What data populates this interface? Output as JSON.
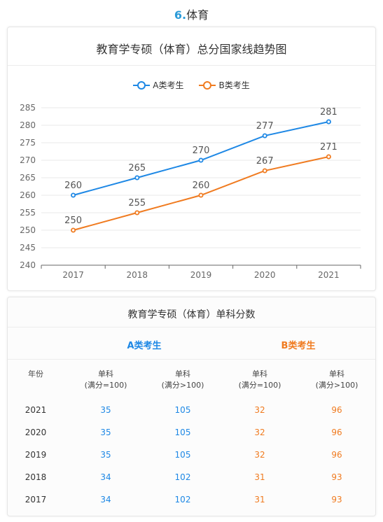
{
  "page": {
    "number": "6",
    "separator": ".",
    "title": "体育"
  },
  "chart_data": {
    "type": "line",
    "title": "教育学专硕（体育）总分国家线趋势图",
    "categories": [
      "2017",
      "2018",
      "2019",
      "2020",
      "2021"
    ],
    "series": [
      {
        "name": "A类考生",
        "color": "#1e88e5",
        "values": [
          260,
          265,
          270,
          277,
          281
        ]
      },
      {
        "name": "B类考生",
        "color": "#f07b20",
        "values": [
          250,
          255,
          260,
          267,
          271
        ]
      }
    ],
    "ylim": [
      240,
      285
    ],
    "yticks": [
      "240",
      "245",
      "250",
      "255",
      "260",
      "265",
      "270",
      "275",
      "280",
      "285"
    ],
    "legend_position": "top-center",
    "grid": true
  },
  "table": {
    "title": "教育学专硕（体育）单科分数",
    "group_a": "A类考生",
    "group_b": "B类考生",
    "headers": [
      {
        "line1": "年份",
        "line2": ""
      },
      {
        "line1": "单科",
        "line2": "(满分=100)"
      },
      {
        "line1": "单科",
        "line2": "(满分>100)"
      },
      {
        "line1": "单科",
        "line2": "(满分=100)"
      },
      {
        "line1": "单科",
        "line2": "(满分>100)"
      }
    ],
    "rows": [
      [
        "2021",
        "35",
        "105",
        "32",
        "96"
      ],
      [
        "2020",
        "35",
        "105",
        "32",
        "96"
      ],
      [
        "2019",
        "35",
        "105",
        "32",
        "96"
      ],
      [
        "2018",
        "34",
        "102",
        "31",
        "93"
      ],
      [
        "2017",
        "34",
        "102",
        "31",
        "93"
      ]
    ]
  }
}
